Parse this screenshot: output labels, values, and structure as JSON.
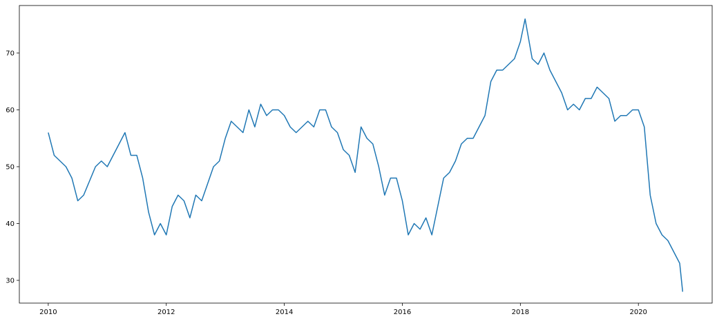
{
  "chart_data": {
    "type": "line",
    "x": [
      2010.0,
      2010.1,
      2010.2,
      2010.3,
      2010.4,
      2010.5,
      2010.6,
      2010.7,
      2010.8,
      2010.9,
      2011.0,
      2011.1,
      2011.2,
      2011.3,
      2011.4,
      2011.5,
      2011.6,
      2011.7,
      2011.8,
      2011.9,
      2012.0,
      2012.1,
      2012.2,
      2012.3,
      2012.4,
      2012.5,
      2012.6,
      2012.7,
      2012.8,
      2012.9,
      2013.0,
      2013.1,
      2013.2,
      2013.3,
      2013.4,
      2013.5,
      2013.6,
      2013.7,
      2013.8,
      2013.9,
      2014.0,
      2014.1,
      2014.2,
      2014.3,
      2014.4,
      2014.5,
      2014.6,
      2014.7,
      2014.8,
      2014.9,
      2015.0,
      2015.1,
      2015.2,
      2015.3,
      2015.4,
      2015.5,
      2015.6,
      2015.7,
      2015.8,
      2015.9,
      2016.0,
      2016.1,
      2016.2,
      2016.3,
      2016.4,
      2016.5,
      2016.6,
      2016.7,
      2016.8,
      2016.9,
      2017.0,
      2017.1,
      2017.2,
      2017.3,
      2017.4,
      2017.5,
      2017.6,
      2017.7,
      2017.8,
      2017.9,
      2018.0,
      2018.08,
      2018.2,
      2018.3,
      2018.4,
      2018.5,
      2018.6,
      2018.7,
      2018.8,
      2018.9,
      2019.0,
      2019.1,
      2019.2,
      2019.3,
      2019.4,
      2019.5,
      2019.6,
      2019.7,
      2019.8,
      2019.9,
      2020.0,
      2020.1,
      2020.2,
      2020.3,
      2020.4,
      2020.5,
      2020.6,
      2020.7,
      2020.75
    ],
    "series": [
      {
        "color": "#1f77b4",
        "values": [
          56,
          52,
          51,
          50,
          48,
          44,
          45,
          47.5,
          50,
          51,
          50,
          52,
          54,
          56,
          52,
          52,
          48,
          42,
          38,
          40,
          38,
          43,
          45,
          44,
          41,
          45,
          44,
          47,
          50,
          51,
          55,
          58,
          57,
          56,
          60,
          57,
          61,
          59,
          60,
          60,
          59,
          57,
          56,
          57,
          58,
          57,
          60,
          60,
          57,
          56,
          53,
          52,
          49,
          57,
          55,
          54,
          50,
          45,
          48,
          48,
          44,
          38,
          40,
          39,
          41,
          38,
          43,
          48,
          49,
          51,
          54,
          55,
          55,
          57,
          59,
          65,
          67,
          67,
          68,
          69,
          72,
          76,
          69,
          68,
          70,
          67,
          65,
          63,
          60,
          61,
          60,
          62,
          62,
          64,
          63,
          62,
          58,
          59,
          59,
          60,
          60,
          57,
          45,
          40,
          38,
          37,
          35,
          33,
          28
        ]
      }
    ],
    "xlim": [
      2009.51,
      2021.25
    ],
    "ylim": [
      26.0,
      78.36
    ],
    "xticks": [
      2010,
      2012,
      2014,
      2016,
      2018,
      2020
    ],
    "yticks": [
      30,
      40,
      50,
      60,
      70
    ]
  }
}
